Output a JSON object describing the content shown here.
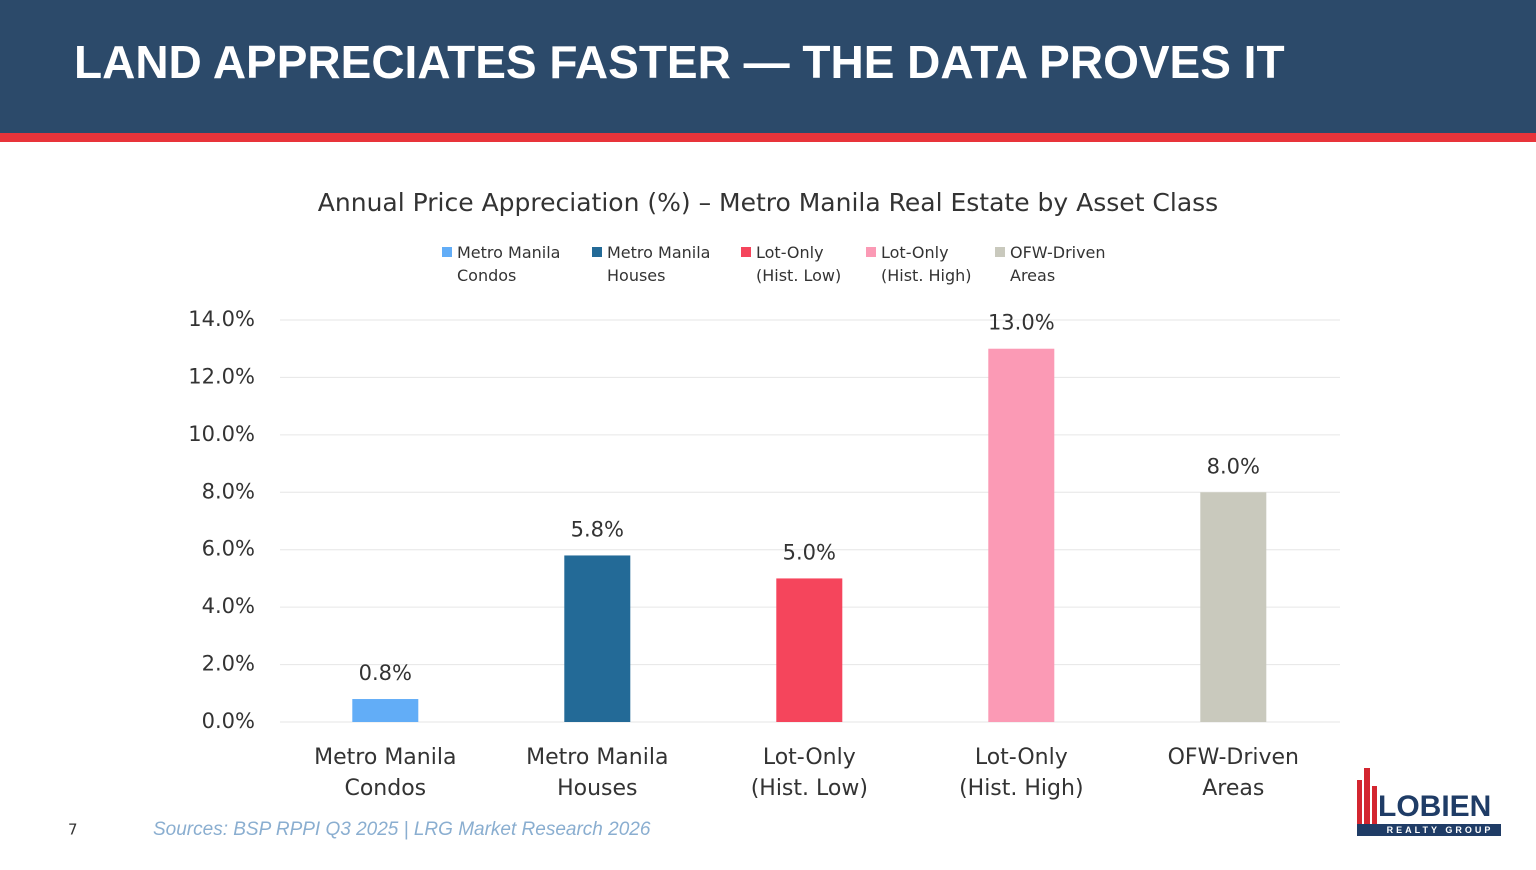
{
  "header": {
    "title": "LAND APPRECIATES FASTER — THE DATA PROVES IT"
  },
  "chart_data": {
    "type": "bar",
    "title": "Annual Price Appreciation (%) – Metro Manila Real Estate by Asset Class",
    "categories": [
      "Metro Manila\nCondos",
      "Metro Manila\nHouses",
      "Lot-Only\n(Hist. Low)",
      "Lot-Only\n(Hist. High)",
      "OFW-Driven\nAreas"
    ],
    "values": [
      0.8,
      5.8,
      5.0,
      13.0,
      8.0
    ],
    "value_labels": [
      "0.8%",
      "5.8%",
      "5.0%",
      "13.0%",
      "8.0%"
    ],
    "colors": [
      "#62adf7",
      "#236a97",
      "#f5455c",
      "#fb9ab5",
      "#c9c9bd"
    ],
    "ylim": [
      0,
      14
    ],
    "yticks": [
      {
        "value": 0,
        "label": "0.0%"
      },
      {
        "value": 2,
        "label": "2.0%"
      },
      {
        "value": 4,
        "label": "4.0%"
      },
      {
        "value": 6,
        "label": "6.0%"
      },
      {
        "value": 8,
        "label": "8.0%"
      },
      {
        "value": 10,
        "label": "10.0%"
      },
      {
        "value": 12,
        "label": "12.0%"
      },
      {
        "value": 14,
        "label": "14.0%"
      }
    ],
    "grid": true,
    "legend": "top"
  },
  "footer": {
    "page": "7",
    "sources": "Sources: BSP RPPI Q3 2025 | LRG Market Research 2026",
    "logo": "LOBIEN",
    "logo_sub": "REALTY GROUP"
  }
}
